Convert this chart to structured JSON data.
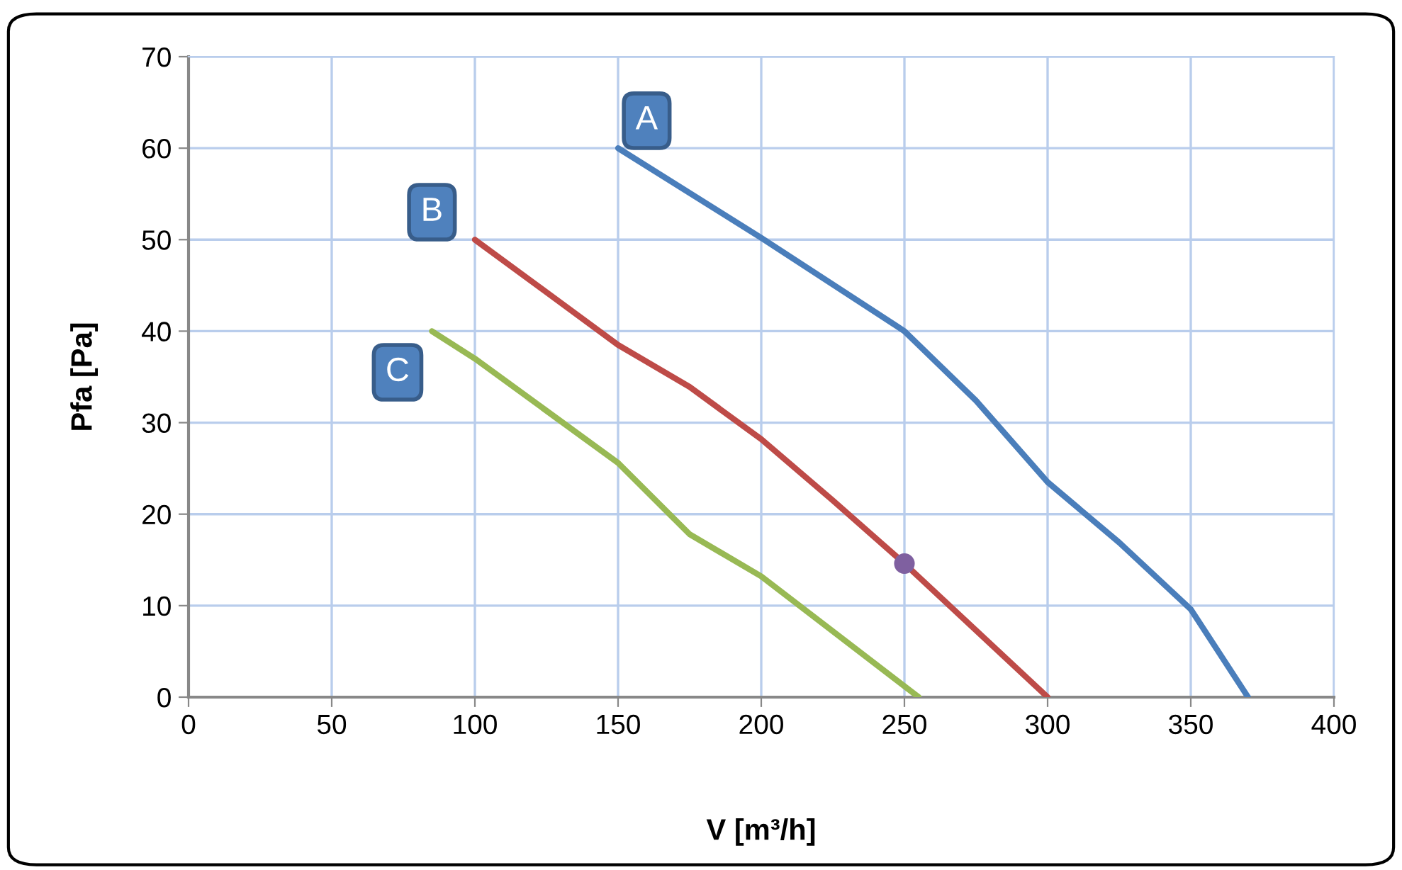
{
  "chart_data": {
    "type": "line",
    "xlabel": "V [m³/h]",
    "ylabel": "Pfa [Pa]",
    "xlim": [
      0,
      400
    ],
    "xticks": [
      0,
      50,
      100,
      150,
      200,
      250,
      300,
      350,
      400
    ],
    "ylim": [
      0,
      70
    ],
    "yticks": [
      0,
      10,
      20,
      30,
      40,
      50,
      60,
      70
    ],
    "grid": true,
    "marker": "none",
    "line_style": "solid",
    "series": [
      {
        "color": "#4a7ebb",
        "x": [
          150,
          200,
          250,
          275,
          300,
          325,
          350,
          370
        ],
        "values": [
          60,
          50.2,
          40,
          32.4,
          23.5,
          16.9,
          9.6,
          0
        ]
      },
      {
        "color": "#be4b48",
        "x": [
          100,
          150,
          175,
          200,
          225,
          250,
          300
        ],
        "values": [
          50,
          38.5,
          33.9,
          28.2,
          21.5,
          14.6,
          0
        ]
      },
      {
        "color": "#98b954",
        "x": [
          85,
          100,
          150,
          175,
          200,
          255
        ],
        "values": [
          40,
          37,
          25.6,
          17.8,
          13.2,
          0
        ]
      },
      {
        "type": "scatter",
        "marker": "circle",
        "color": "#7f60a0",
        "x": [
          250
        ],
        "values": [
          14.6
        ]
      }
    ],
    "annotations": [
      {
        "text": "A",
        "x": 160,
        "y": 63
      },
      {
        "text": "B",
        "x": 85,
        "y": 53
      },
      {
        "text": "C",
        "x": 73,
        "y": 35.5
      }
    ]
  }
}
